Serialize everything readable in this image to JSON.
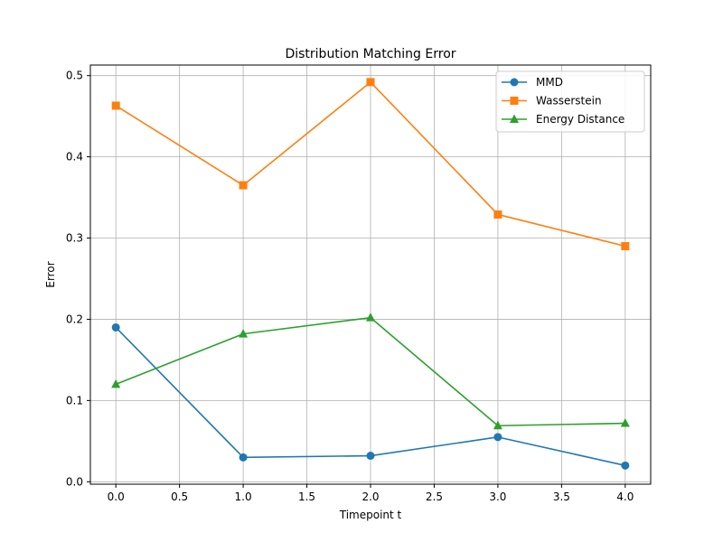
{
  "chart_data": {
    "type": "line",
    "title": "Distribution Matching Error",
    "xlabel": "Timepoint t",
    "ylabel": "Error",
    "x": [
      0,
      1,
      2,
      3,
      4
    ],
    "xlim": [
      -0.2,
      4.2
    ],
    "ylim": [
      -0.003,
      0.513
    ],
    "xticks": [
      0.0,
      0.5,
      1.0,
      1.5,
      2.0,
      2.5,
      3.0,
      3.5,
      4.0
    ],
    "xtick_labels": [
      "0.0",
      "0.5",
      "1.0",
      "1.5",
      "2.0",
      "2.5",
      "3.0",
      "3.5",
      "4.0"
    ],
    "yticks": [
      0.0,
      0.1,
      0.2,
      0.3,
      0.4,
      0.5
    ],
    "ytick_labels": [
      "0.0",
      "0.1",
      "0.2",
      "0.3",
      "0.4",
      "0.5"
    ],
    "grid": true,
    "legend_position": "top-right",
    "series": [
      {
        "name": "MMD",
        "color": "#1f77b4",
        "marker": "circle",
        "values": [
          0.19,
          0.03,
          0.032,
          0.055,
          0.02
        ]
      },
      {
        "name": "Wasserstein",
        "color": "#ff7f0e",
        "marker": "square",
        "values": [
          0.463,
          0.365,
          0.492,
          0.329,
          0.29
        ]
      },
      {
        "name": "Energy Distance",
        "color": "#2ca02c",
        "marker": "triangle",
        "values": [
          0.12,
          0.182,
          0.202,
          0.069,
          0.072
        ]
      }
    ]
  }
}
